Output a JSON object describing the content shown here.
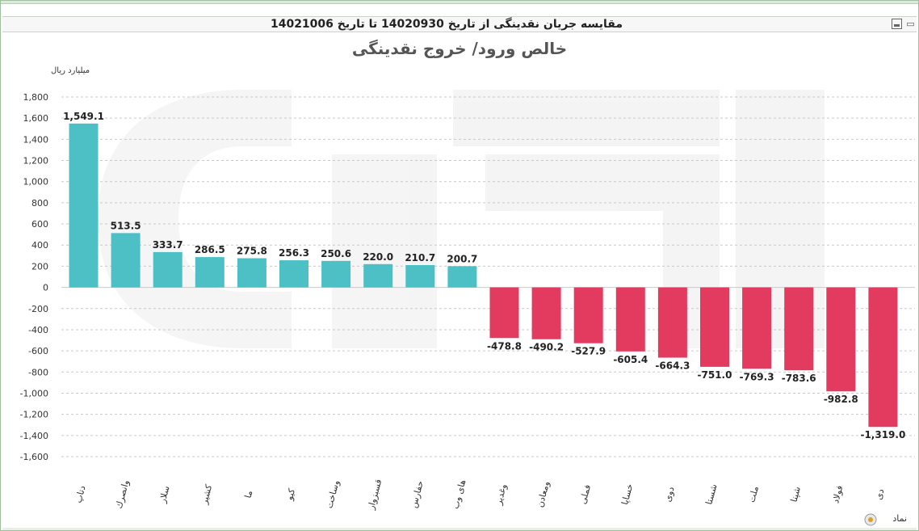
{
  "window": {
    "title": "مقایسه جریان نقدینگی از تاریخ 14020930 تا تاریخ 14021006"
  },
  "icons": {
    "export": "export-icon",
    "print": "print-icon",
    "legend": "legend-icon"
  },
  "colors": {
    "positive": "#4dc0c5",
    "negative": "#e23b5f",
    "grid": "#c9c9c9",
    "text": "#333333"
  },
  "chart_data": {
    "type": "bar",
    "title": "خالص ورود/ خروج نقدینگی",
    "ylabel": "میلیارد ریال",
    "xlabel": "نماد",
    "ylim": [
      -1600,
      1800
    ],
    "ytick_step": 200,
    "yticks": [
      "1,800",
      "1,600",
      "1,400",
      "1,200",
      "1,000",
      "800",
      "600",
      "400",
      "200",
      "0",
      "-200",
      "-400",
      "-600",
      "-800",
      "-1,000",
      "-1,200",
      "-1,400",
      "-1,600"
    ],
    "grid": true,
    "legend": false,
    "categories": [
      "دتاپ",
      "وانصرك",
      "سلار",
      "كشير",
      "ما",
      "كيو",
      "وساخت",
      "قسبزوار",
      "حفارس",
      "های وب",
      "وغدیر",
      "ومعادن",
      "فملی",
      "خساپا",
      "دوی",
      "شستا",
      "ملت",
      "شپنا",
      "فولاد",
      "دی"
    ],
    "values": [
      1549.1,
      513.5,
      333.7,
      286.5,
      275.8,
      256.3,
      250.6,
      220.0,
      210.7,
      200.7,
      -478.8,
      -490.2,
      -527.9,
      -605.4,
      -664.3,
      -751.0,
      -769.3,
      -783.6,
      -982.8,
      -1319.0
    ],
    "labels": [
      "1,549.1",
      "513.5",
      "333.7",
      "286.5",
      "275.8",
      "256.3",
      "250.6",
      "220.0",
      "210.7",
      "200.7",
      "-478.8",
      "-490.2",
      "-527.9",
      "-605.4",
      "-664.3",
      "-751.0",
      "-769.3",
      "-783.6",
      "-982.8",
      "-1,319.0"
    ]
  }
}
